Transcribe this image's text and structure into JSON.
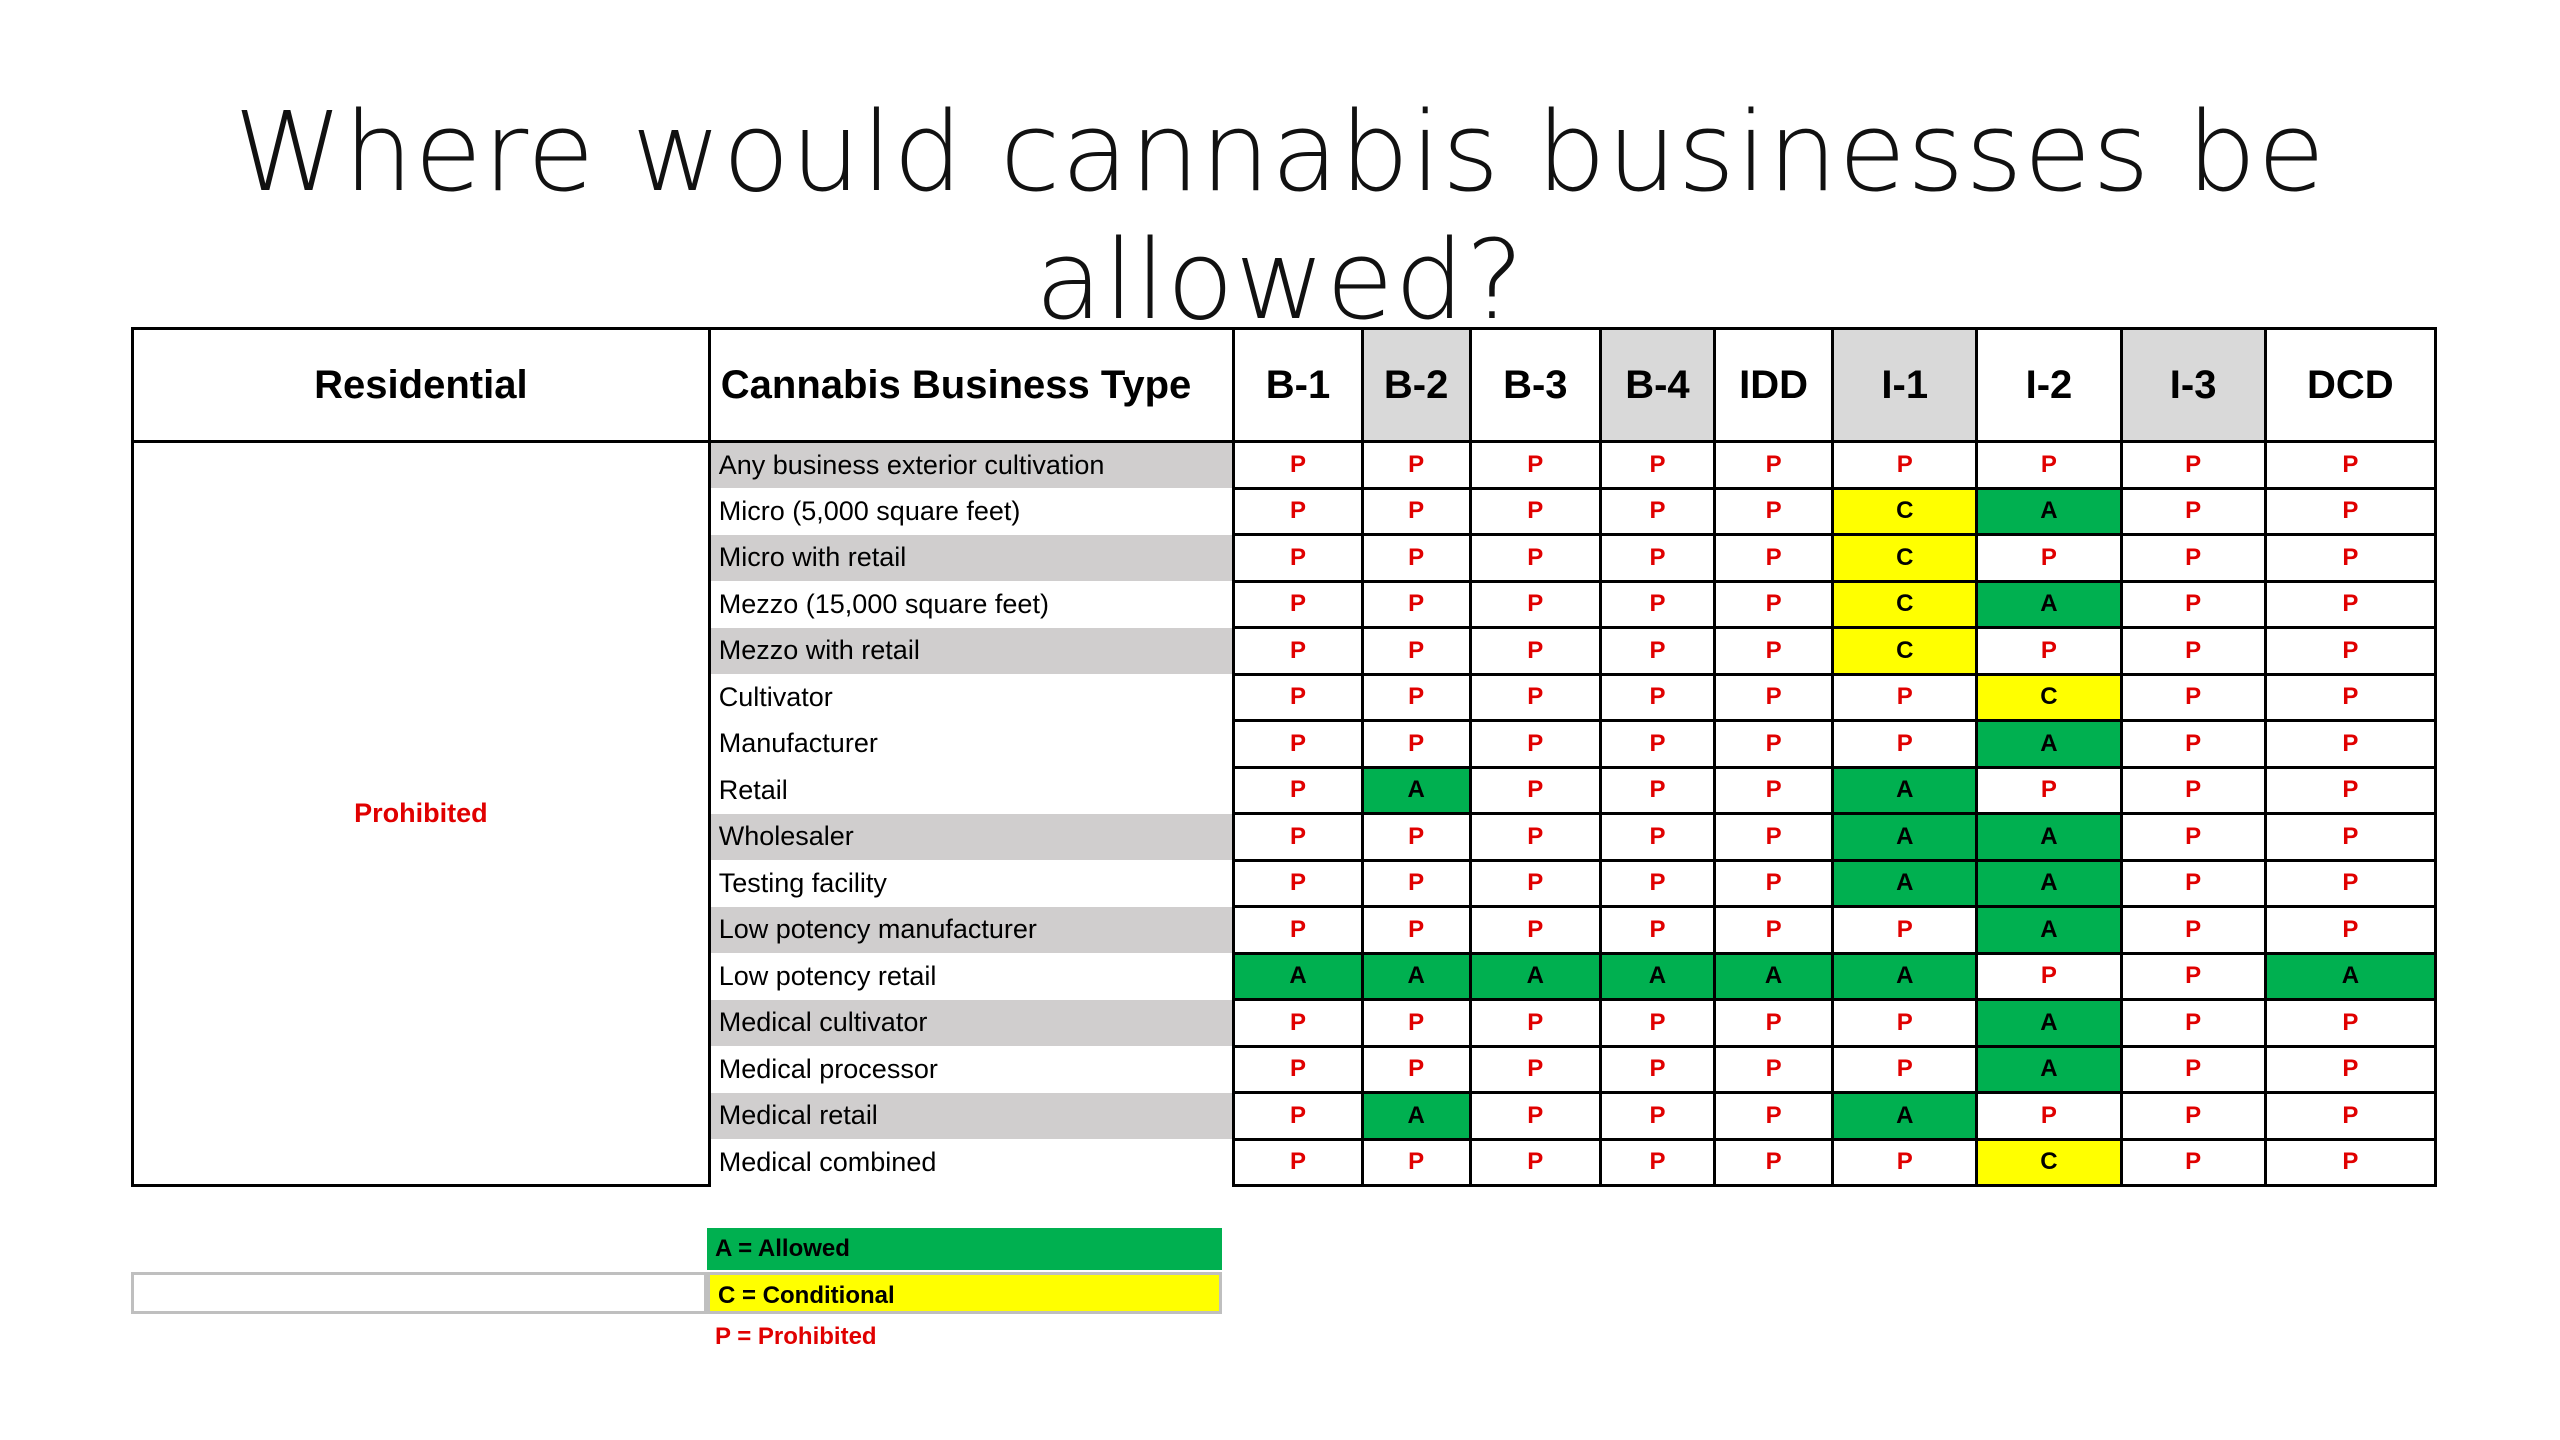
{
  "title": "Where would cannabis businesses be allowed?",
  "table": {
    "headers": {
      "residential": "Residential",
      "business_type": "Cannabis Business Type",
      "zones": [
        "B-1",
        "B-2",
        "B-3",
        "B-4",
        "IDD",
        "I-1",
        "I-2",
        "I-3",
        "DCD"
      ]
    },
    "zone_shaded": [
      false,
      true,
      false,
      true,
      false,
      true,
      false,
      true,
      false
    ],
    "residential_value": "Prohibited",
    "rows": [
      {
        "type": "Any business exterior cultivation",
        "codes": [
          "P",
          "P",
          "P",
          "P",
          "P",
          "P",
          "P",
          "P",
          "P"
        ]
      },
      {
        "type": "Micro (5,000 square feet)",
        "codes": [
          "P",
          "P",
          "P",
          "P",
          "P",
          "C",
          "A",
          "P",
          "P"
        ]
      },
      {
        "type": "Micro with retail",
        "codes": [
          "P",
          "P",
          "P",
          "P",
          "P",
          "C",
          "P",
          "P",
          "P"
        ]
      },
      {
        "type": "Mezzo (15,000 square feet)",
        "codes": [
          "P",
          "P",
          "P",
          "P",
          "P",
          "C",
          "A",
          "P",
          "P"
        ]
      },
      {
        "type": "Mezzo with retail",
        "codes": [
          "P",
          "P",
          "P",
          "P",
          "P",
          "C",
          "P",
          "P",
          "P"
        ]
      },
      {
        "type": "Cultivator",
        "codes": [
          "P",
          "P",
          "P",
          "P",
          "P",
          "P",
          "C",
          "P",
          "P"
        ]
      },
      {
        "type": "Manufacturer",
        "codes": [
          "P",
          "P",
          "P",
          "P",
          "P",
          "P",
          "A",
          "P",
          "P"
        ]
      },
      {
        "type": "Retail",
        "codes": [
          "P",
          "A",
          "P",
          "P",
          "P",
          "A",
          "P",
          "P",
          "P"
        ]
      },
      {
        "type": "Wholesaler",
        "codes": [
          "P",
          "P",
          "P",
          "P",
          "P",
          "A",
          "A",
          "P",
          "P"
        ]
      },
      {
        "type": "Testing facility",
        "codes": [
          "P",
          "P",
          "P",
          "P",
          "P",
          "A",
          "A",
          "P",
          "P"
        ]
      },
      {
        "type": "Low potency manufacturer",
        "codes": [
          "P",
          "P",
          "P",
          "P",
          "P",
          "P",
          "A",
          "P",
          "P"
        ]
      },
      {
        "type": "Low potency retail",
        "codes": [
          "A",
          "A",
          "A",
          "A",
          "A",
          "A",
          "P",
          "P",
          "A"
        ]
      },
      {
        "type": "Medical cultivator",
        "codes": [
          "P",
          "P",
          "P",
          "P",
          "P",
          "P",
          "A",
          "P",
          "P"
        ]
      },
      {
        "type": "Medical processor",
        "codes": [
          "P",
          "P",
          "P",
          "P",
          "P",
          "P",
          "A",
          "P",
          "P"
        ]
      },
      {
        "type": "Medical retail",
        "codes": [
          "P",
          "A",
          "P",
          "P",
          "P",
          "A",
          "P",
          "P",
          "P"
        ]
      },
      {
        "type": "Medical combined",
        "codes": [
          "P",
          "P",
          "P",
          "P",
          "P",
          "P",
          "C",
          "P",
          "P"
        ]
      }
    ],
    "row_shaded": [
      true,
      false,
      true,
      false,
      true,
      false,
      false,
      false,
      true,
      false,
      true,
      false,
      true,
      false,
      true,
      false
    ]
  },
  "legend": {
    "allowed": "A = Allowed",
    "conditional": "C = Conditional",
    "prohibited": "P = Prohibited"
  },
  "colors": {
    "allowed": "#00b050",
    "conditional": "#ffff00",
    "prohibited_text": "#e00000",
    "header_shade": "#d9d9d9",
    "row_shade": "#d0cece"
  }
}
